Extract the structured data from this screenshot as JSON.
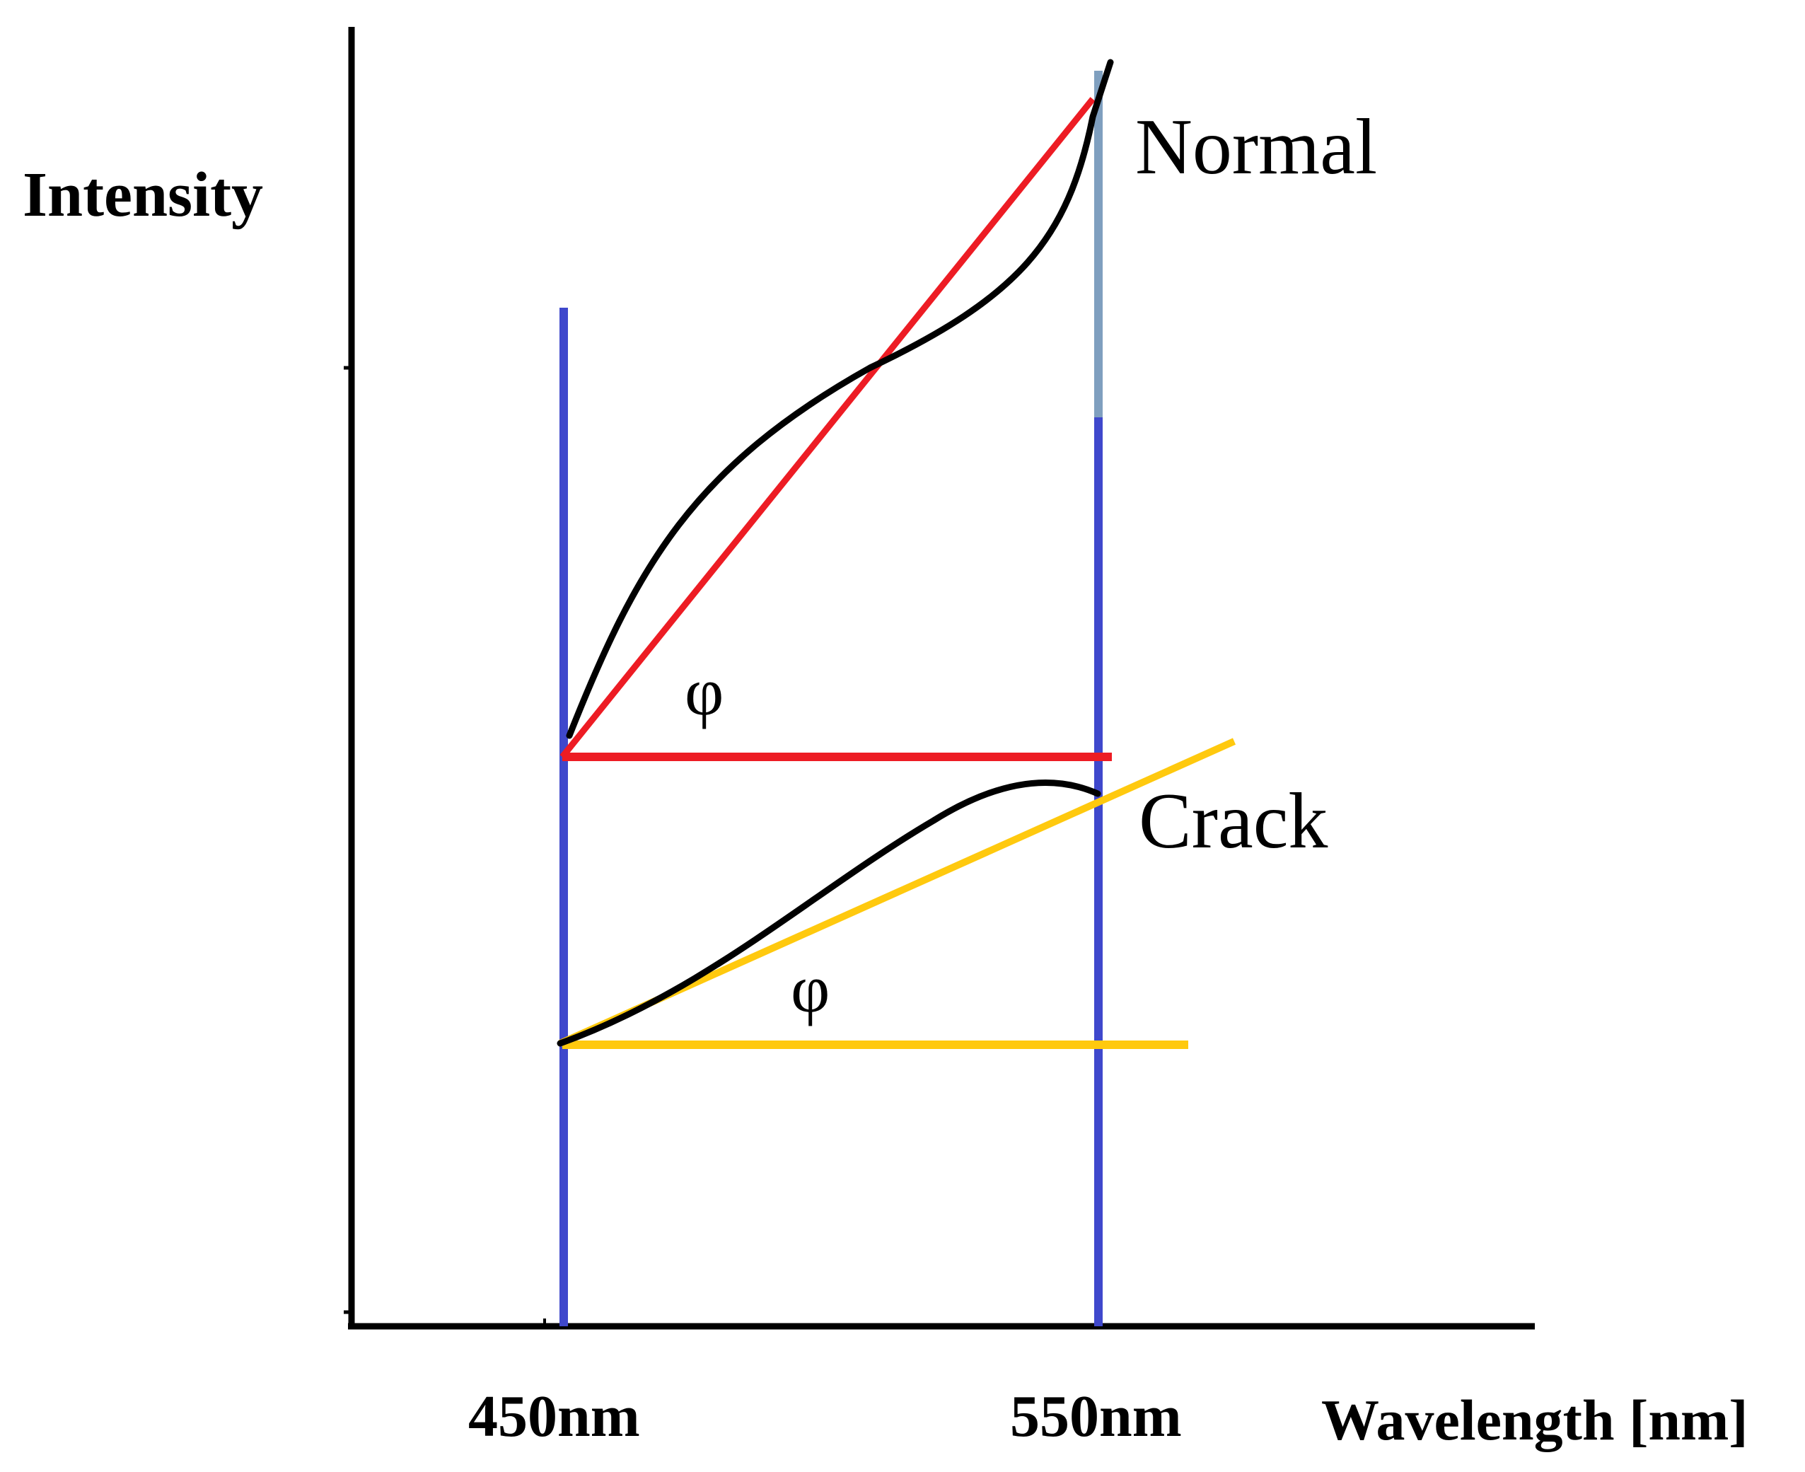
{
  "diagram": {
    "y_axis_label": "Intensity",
    "x_axis_label": "Wavelength [nm]",
    "tick_left": "450nm",
    "tick_right": "550nm",
    "normal_label": "Normal",
    "crack_label": "Crack",
    "angle_symbol_normal": "φ",
    "angle_symbol_crack": "φ"
  },
  "colors": {
    "axis": "#000000",
    "curve": "#000000",
    "guide_lines": "#3f48cc",
    "guide_upper": "#7f9fbf",
    "normal_lines": "#ed1c24",
    "crack_lines": "#ffc90e"
  }
}
